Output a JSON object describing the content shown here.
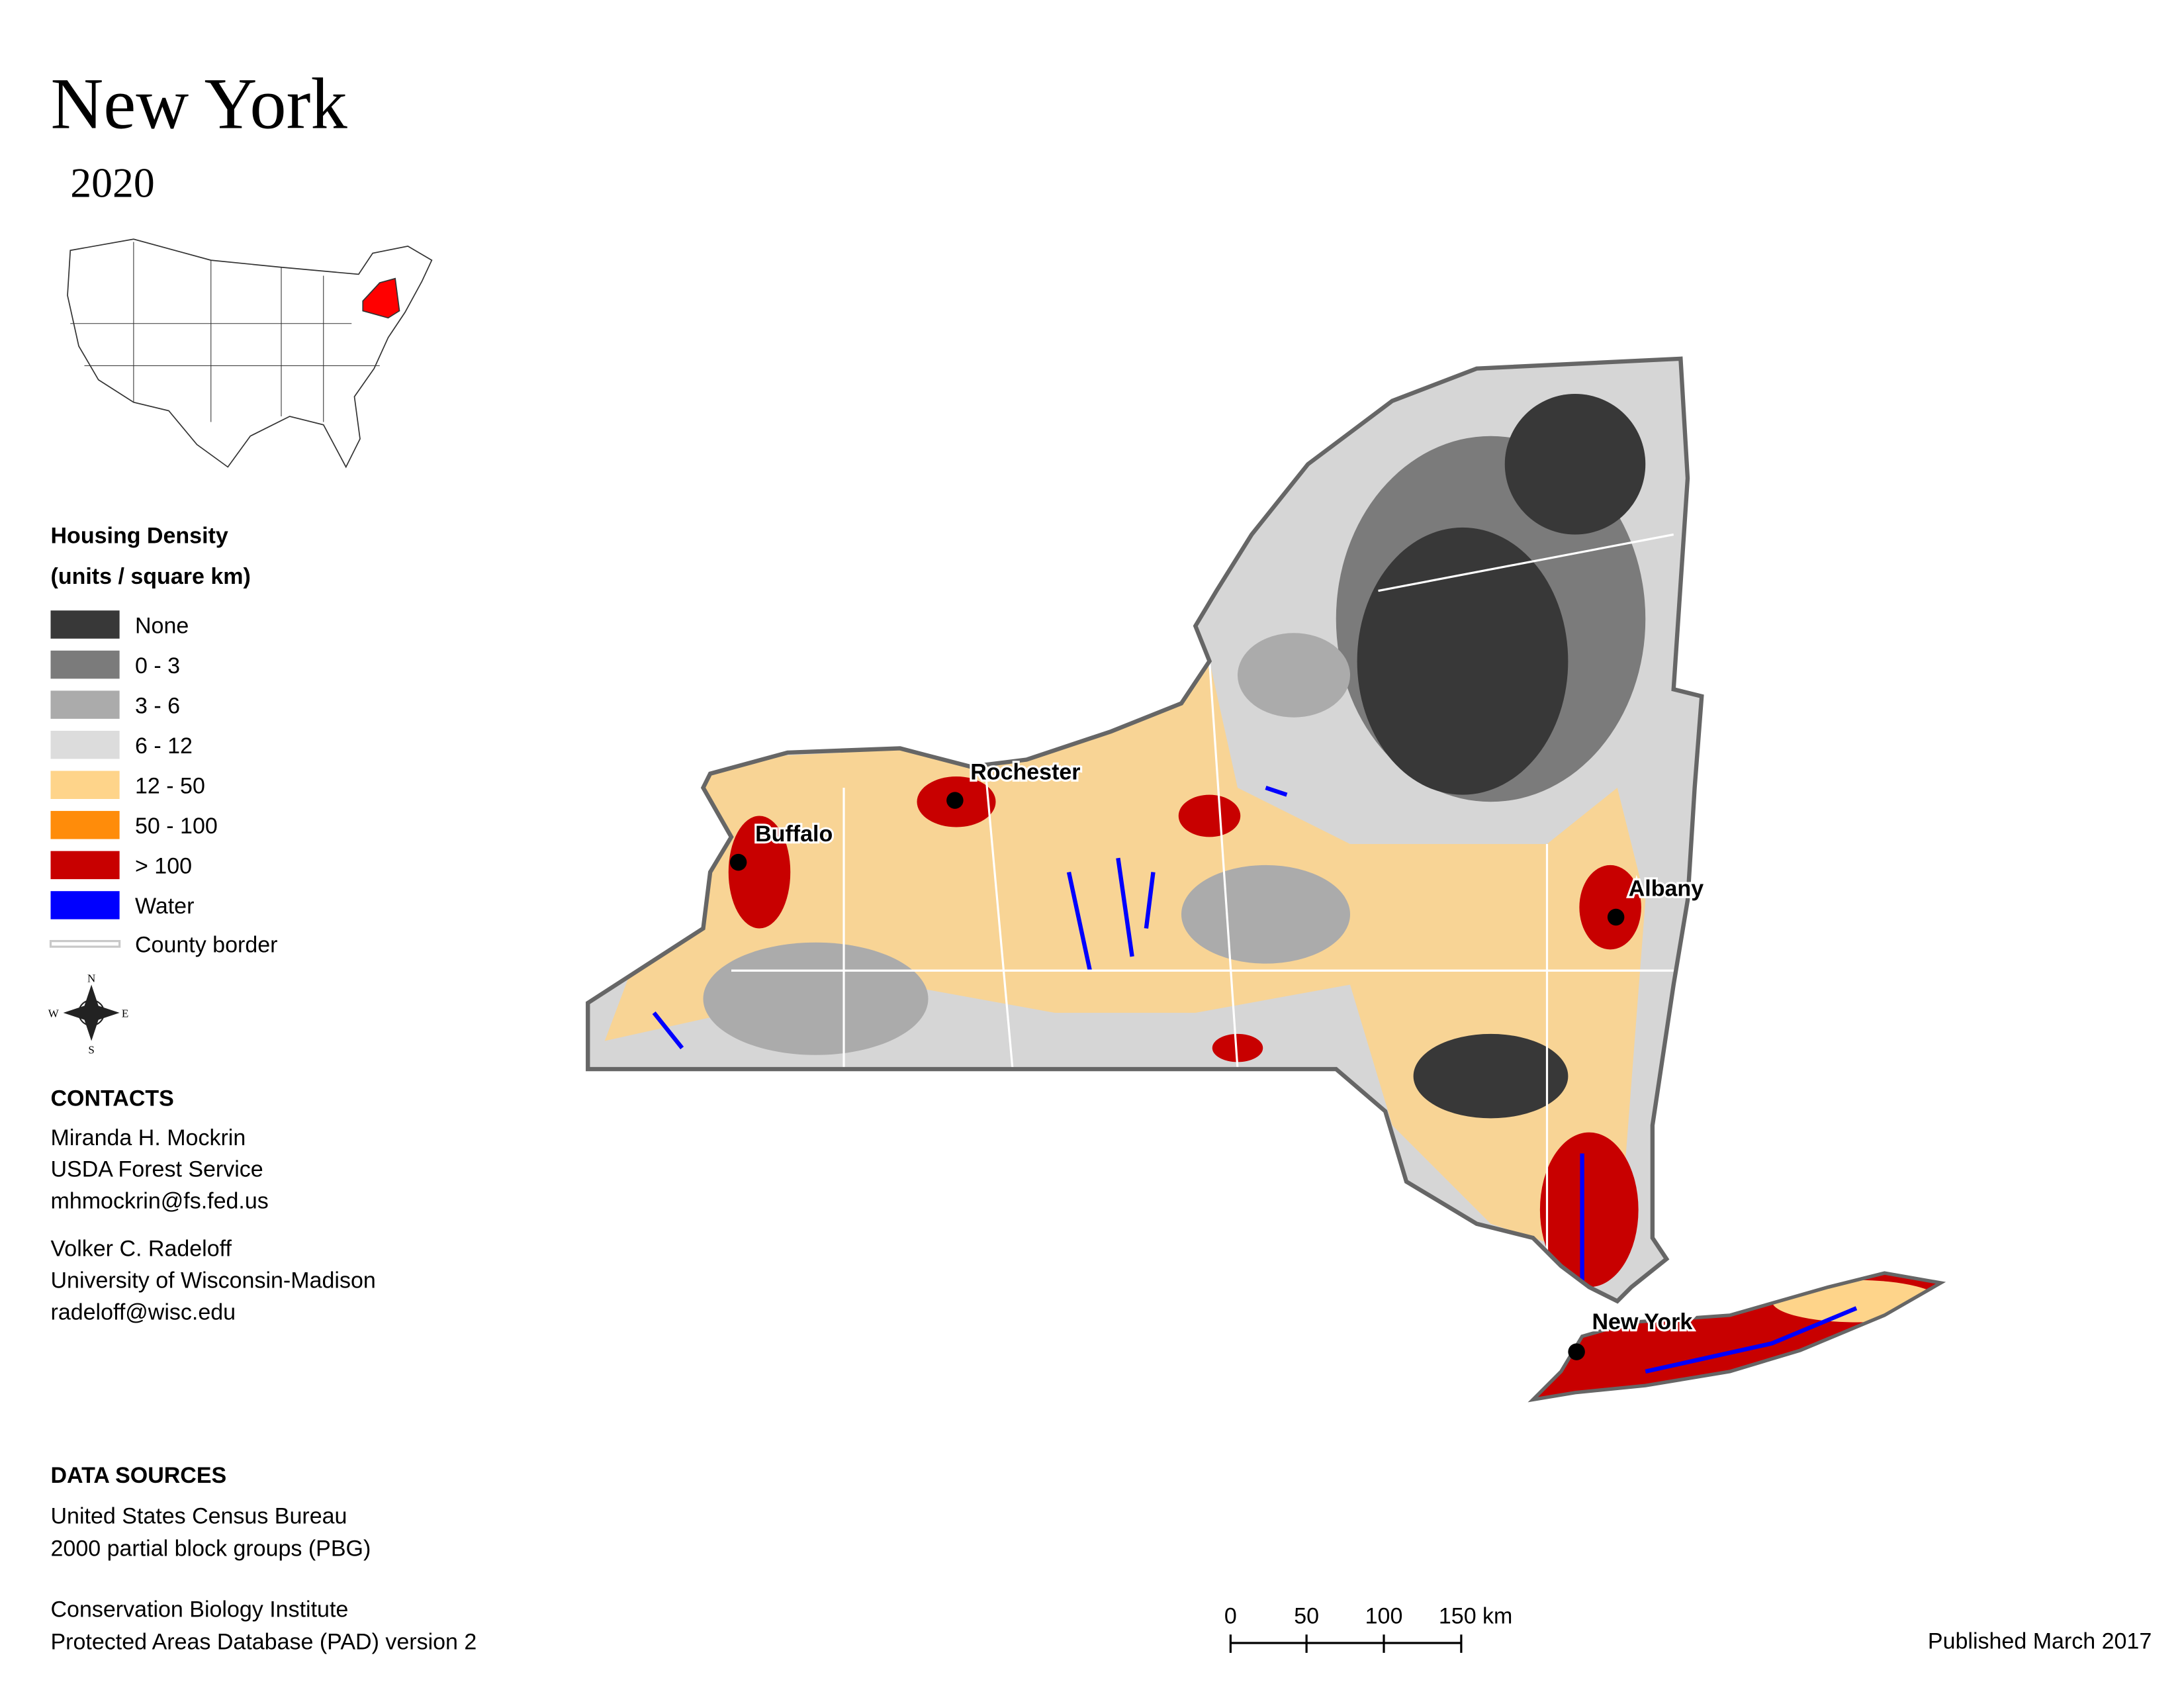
{
  "title": "New York",
  "year": "2020",
  "legend": {
    "title": "Housing Density",
    "subtitle": "(units / square km)",
    "items": [
      {
        "label": "None",
        "color": "#383838"
      },
      {
        "label": "0 - 3",
        "color": "#7b7b7b"
      },
      {
        "label": "3 - 6",
        "color": "#ababab"
      },
      {
        "label": "6 - 12",
        "color": "#dcdcdc"
      },
      {
        "label": "12 - 50",
        "color": "#fed48a"
      },
      {
        "label": "50 - 100",
        "color": "#ff8c0a"
      },
      {
        "label": "> 100",
        "color": "#c80000"
      },
      {
        "label": "Water",
        "color": "#0000ff"
      }
    ],
    "border": {
      "label": "County border",
      "color": "#c8c8c8"
    }
  },
  "compass": [
    "N",
    "E",
    "S",
    "W"
  ],
  "cities": [
    "Rochester",
    "Buffalo",
    "Albany",
    "New York"
  ],
  "contacts": {
    "heading": "CONTACTS",
    "people": [
      [
        "Miranda H. Mockrin",
        "USDA Forest Service",
        "mhmockrin@fs.fed.us"
      ],
      [
        "Volker C. Radeloff",
        "University of Wisconsin-Madison",
        "radeloff@wisc.edu"
      ]
    ]
  },
  "data_sources": {
    "heading": "DATA SOURCES",
    "entries": [
      [
        "United States Census Bureau",
        "2000 partial block groups (PBG)"
      ],
      [
        "Conservation Biology Institute",
        "Protected Areas Database (PAD) version 2"
      ]
    ]
  },
  "scale_bar": [
    "0",
    "50",
    "100",
    "150 km"
  ],
  "published": "Published March 2017"
}
